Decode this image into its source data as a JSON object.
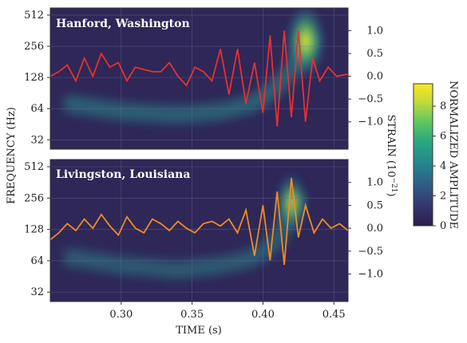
{
  "chart_data": [
    {
      "type": "heatmap",
      "title": "Hanford, Washington",
      "x_range": [
        0.25,
        0.46
      ],
      "y_left": {
        "label": "FREQUENCY (Hz)",
        "scale": "log2",
        "ticks": [
          32,
          64,
          128,
          256,
          512
        ],
        "range": [
          26,
          600
        ]
      },
      "y_right": {
        "label": "STRAIN (10^-21)",
        "ticks": [
          -1.0,
          -0.5,
          0.0,
          0.5,
          1.0
        ],
        "tick_labels": [
          "−1.0",
          "−0.5",
          "0.0",
          "0.5",
          "1.0"
        ],
        "range": [
          -1.6,
          1.5
        ]
      },
      "strain_color": "#e83030",
      "chirp_track": [
        [
          0.26,
          72
        ],
        [
          0.3,
          60
        ],
        [
          0.34,
          56
        ],
        [
          0.37,
          60
        ],
        [
          0.39,
          70
        ],
        [
          0.4,
          82
        ],
        [
          0.41,
          105
        ],
        [
          0.42,
          150
        ],
        [
          0.43,
          250
        ],
        [
          0.435,
          330
        ]
      ],
      "strain_series": {
        "name": "Strain",
        "x": [
          0.25,
          0.256,
          0.262,
          0.268,
          0.274,
          0.28,
          0.286,
          0.292,
          0.298,
          0.304,
          0.31,
          0.316,
          0.322,
          0.328,
          0.334,
          0.34,
          0.346,
          0.352,
          0.358,
          0.364,
          0.37,
          0.376,
          0.382,
          0.388,
          0.394,
          0.4,
          0.405,
          0.41,
          0.415,
          0.42,
          0.425,
          0.43,
          0.435,
          0.44,
          0.446,
          0.452,
          0.46
        ],
        "y": [
          0.0,
          0.1,
          0.25,
          -0.1,
          0.4,
          0.0,
          0.5,
          0.2,
          0.3,
          -0.1,
          0.2,
          0.15,
          0.1,
          0.1,
          0.3,
          0.0,
          -0.2,
          0.2,
          0.1,
          -0.1,
          0.6,
          -0.4,
          0.6,
          -0.6,
          0.3,
          -0.8,
          0.9,
          -1.1,
          1.0,
          -0.9,
          1.0,
          -1.0,
          0.4,
          -0.1,
          0.2,
          0.0,
          0.05
        ]
      }
    },
    {
      "type": "heatmap",
      "title": "Livingston, Louisiana",
      "x_range": [
        0.25,
        0.46
      ],
      "x_ticks": [
        0.3,
        0.35,
        0.4,
        0.45
      ],
      "x_tick_labels": [
        "0.30",
        "0.35",
        "0.40",
        "0.45"
      ],
      "xlabel": "TIME (s)",
      "y_left": {
        "ticks": [
          32,
          64,
          128,
          256,
          512
        ],
        "range": [
          26,
          600
        ]
      },
      "y_right": {
        "ticks": [
          -1.0,
          -0.5,
          0.0,
          0.5,
          1.0
        ],
        "tick_labels": [
          "−1.0",
          "−0.5",
          "0.0",
          "0.5",
          "1.0"
        ],
        "range": [
          -1.6,
          1.5
        ]
      },
      "strain_color": "#f08a24",
      "chirp_track": [
        [
          0.26,
          70
        ],
        [
          0.3,
          58
        ],
        [
          0.34,
          52
        ],
        [
          0.37,
          58
        ],
        [
          0.39,
          66
        ],
        [
          0.4,
          78
        ],
        [
          0.41,
          100
        ],
        [
          0.415,
          140
        ],
        [
          0.42,
          200
        ],
        [
          0.425,
          280
        ]
      ],
      "strain_series": {
        "name": "Strain",
        "x": [
          0.25,
          0.256,
          0.262,
          0.268,
          0.274,
          0.28,
          0.286,
          0.292,
          0.298,
          0.304,
          0.31,
          0.316,
          0.322,
          0.328,
          0.334,
          0.34,
          0.346,
          0.352,
          0.358,
          0.364,
          0.37,
          0.376,
          0.382,
          0.388,
          0.394,
          0.4,
          0.405,
          0.41,
          0.415,
          0.42,
          0.425,
          0.43,
          0.436,
          0.442,
          0.448,
          0.454,
          0.46
        ],
        "y": [
          -0.25,
          -0.1,
          0.1,
          -0.05,
          0.2,
          0.0,
          0.3,
          0.05,
          -0.15,
          0.25,
          0.0,
          -0.1,
          0.2,
          0.1,
          -0.05,
          0.15,
          0.0,
          -0.1,
          0.1,
          0.15,
          0.05,
          0.2,
          -0.1,
          0.4,
          -0.6,
          0.5,
          -0.7,
          0.8,
          -0.8,
          1.1,
          -0.2,
          0.5,
          -0.1,
          0.2,
          0.0,
          0.1,
          -0.05
        ]
      }
    }
  ],
  "colorbar": {
    "label": "NORMALIZED AMPLITUDE",
    "range": [
      0,
      9.5
    ],
    "ticks": [
      0,
      2,
      4,
      6,
      8
    ],
    "colors": [
      "#2b1d4e",
      "#35376e",
      "#2f5f8a",
      "#23898e",
      "#2aa97c",
      "#6cc95c",
      "#c7dc36",
      "#fde725"
    ]
  }
}
